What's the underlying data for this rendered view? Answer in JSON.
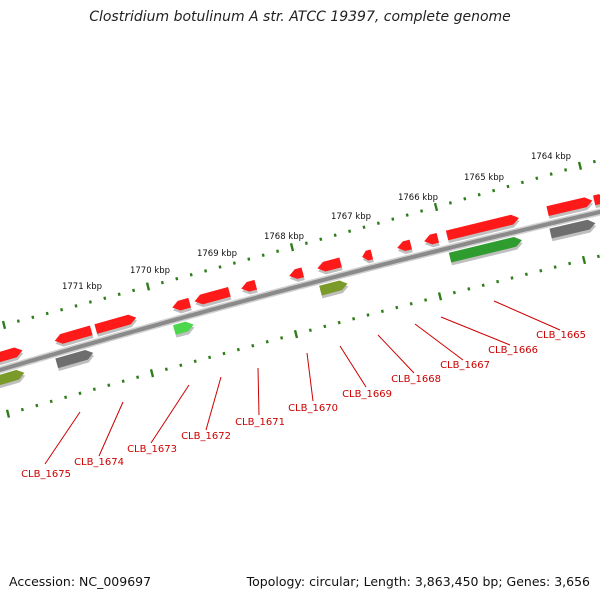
{
  "title": "Clostridium botulinum A str. ATCC 19397, complete genome",
  "footer": {
    "accession": "Accession: NC_009697",
    "topology": "Topology: circular; Length: 3,863,450 bp; Genes: 3,656"
  },
  "colors": {
    "backbone": "#8a8a8a",
    "tick": "#2e7d1a",
    "gene_red": "#ff1a1a",
    "gene_green": "#2f9c2f",
    "gene_olive": "#7a9a2a",
    "gene_gray": "#6e6e6e",
    "gene_lightgreen": "#4cd64c",
    "label": "#cc0000"
  },
  "kbp_labels": [
    "1764 kbp",
    "1765 kbp",
    "1766 kbp",
    "1767 kbp",
    "1768 kbp",
    "1769 kbp",
    "1770 kbp",
    "1771 kbp"
  ],
  "genes": [
    "CLB_1665",
    "CLB_1666",
    "CLB_1667",
    "CLB_1668",
    "CLB_1669",
    "CLB_1670",
    "CLB_1671",
    "CLB_1672",
    "CLB_1673",
    "CLB_1674",
    "CLB_1675"
  ]
}
